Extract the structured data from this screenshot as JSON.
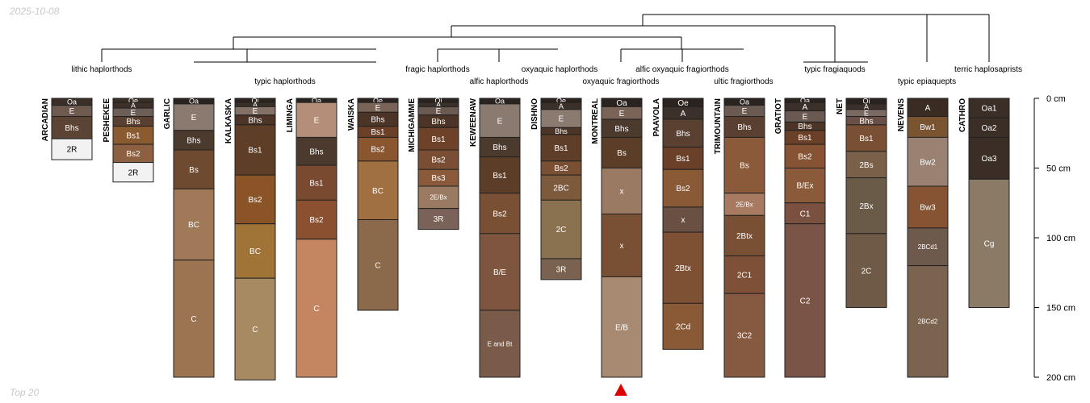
{
  "header": {
    "date": "2025-10-08",
    "note": "Top 20"
  },
  "colors": {
    "line": "#000000",
    "border": "#222222",
    "marker": "#e00000",
    "axis": "#000000"
  },
  "depth_axis": {
    "max_depth_cm": 200,
    "ticks": [
      {
        "depth": 0,
        "label": "0 cm"
      },
      {
        "depth": 50,
        "label": "50 cm"
      },
      {
        "depth": 100,
        "label": "100 cm"
      },
      {
        "depth": 150,
        "label": "150 cm"
      },
      {
        "depth": 200,
        "label": "200 cm"
      }
    ]
  },
  "taxa": [
    {
      "id": "lithic",
      "label": "lithic haplorthods"
    },
    {
      "id": "typic",
      "label": "typic haplorthods"
    },
    {
      "id": "fragic",
      "label": "fragic haplorthods"
    },
    {
      "id": "alfic",
      "label": "alfic haplorthods"
    },
    {
      "id": "oxyaquic",
      "label": "oxyaquic haplorthods"
    },
    {
      "id": "oxyfrag",
      "label": "oxyaquic fragiorthods"
    },
    {
      "id": "alfoxy",
      "label": "alfic oxyaquic fragiorthods"
    },
    {
      "id": "ultic",
      "label": "ultic fragiorthods"
    },
    {
      "id": "typfragq",
      "label": "typic fragiaquods"
    },
    {
      "id": "epi",
      "label": "typic epiaquepts"
    },
    {
      "id": "terric",
      "label": "terric haplosaprists"
    }
  ],
  "profiles": [
    {
      "name": "ARCADIAN",
      "horizons": [
        {
          "name": "Oa",
          "top": 0,
          "bottom": 5,
          "color": "#3a2e27"
        },
        {
          "name": "E",
          "top": 5,
          "bottom": 13,
          "color": "#6e5a4e"
        },
        {
          "name": "Bhs",
          "top": 13,
          "bottom": 29,
          "color": "#5c4434"
        },
        {
          "name": "2R",
          "top": 29,
          "bottom": 44,
          "color": "#f2f2f2"
        }
      ]
    },
    {
      "name": "PESHEKEE",
      "horizons": [
        {
          "name": "Oe",
          "top": 0,
          "bottom": 3,
          "color": "#3a2e27"
        },
        {
          "name": "A",
          "top": 3,
          "bottom": 7,
          "color": "#3c3028"
        },
        {
          "name": "E",
          "top": 7,
          "bottom": 13,
          "color": "#6e5e58"
        },
        {
          "name": "Bhs",
          "top": 13,
          "bottom": 20,
          "color": "#5a4030"
        },
        {
          "name": "Bs1",
          "top": 20,
          "bottom": 33,
          "color": "#8a5a30"
        },
        {
          "name": "Bs2",
          "top": 33,
          "bottom": 46,
          "color": "#8c6040"
        },
        {
          "name": "2R",
          "top": 46,
          "bottom": 60,
          "color": "#f2f2f2"
        }
      ]
    },
    {
      "name": "GARLIC",
      "horizons": [
        {
          "name": "Oa",
          "top": 0,
          "bottom": 4,
          "color": "#2a2320"
        },
        {
          "name": "E",
          "top": 4,
          "bottom": 23,
          "color": "#8a7a70"
        },
        {
          "name": "Bhs",
          "top": 23,
          "bottom": 37,
          "color": "#4c3a2e"
        },
        {
          "name": "Bs",
          "top": 37,
          "bottom": 65,
          "color": "#6e4a30"
        },
        {
          "name": "BC",
          "top": 65,
          "bottom": 116,
          "color": "#a07a58"
        },
        {
          "name": "C",
          "top": 116,
          "bottom": 200,
          "color": "#9c7452"
        }
      ]
    },
    {
      "name": "KALKASKA",
      "horizons": [
        {
          "name": "Oi",
          "top": 0,
          "bottom": 3,
          "color": "#2c2420"
        },
        {
          "name": "A",
          "top": 3,
          "bottom": 6,
          "color": "#3a302a"
        },
        {
          "name": "E",
          "top": 6,
          "bottom": 12,
          "color": "#857266"
        },
        {
          "name": "Bhs",
          "top": 12,
          "bottom": 19,
          "color": "#4c3426"
        },
        {
          "name": "Bs1",
          "top": 19,
          "bottom": 55,
          "color": "#5e3e26"
        },
        {
          "name": "Bs2",
          "top": 55,
          "bottom": 90,
          "color": "#8a5426"
        },
        {
          "name": "BC",
          "top": 90,
          "bottom": 129,
          "color": "#a07436"
        },
        {
          "name": "C",
          "top": 129,
          "bottom": 202,
          "color": "#a88a62"
        }
      ]
    },
    {
      "name": "LIMINGA",
      "horizons": [
        {
          "name": "Oa",
          "top": 0,
          "bottom": 3,
          "color": "#2a2320"
        },
        {
          "name": "E",
          "top": 3,
          "bottom": 28,
          "color": "#b48e78"
        },
        {
          "name": "Bhs",
          "top": 28,
          "bottom": 48,
          "color": "#4c3a2e"
        },
        {
          "name": "Bs1",
          "top": 48,
          "bottom": 73,
          "color": "#7a4a30"
        },
        {
          "name": "Bs2",
          "top": 73,
          "bottom": 101,
          "color": "#8a5030"
        },
        {
          "name": "C",
          "top": 101,
          "bottom": 200,
          "color": "#c48660"
        }
      ]
    },
    {
      "name": "WAISKA",
      "horizons": [
        {
          "name": "Oe",
          "top": 0,
          "bottom": 3,
          "color": "#2a2320"
        },
        {
          "name": "E",
          "top": 3,
          "bottom": 10,
          "color": "#7a6458"
        },
        {
          "name": "Bhs",
          "top": 10,
          "bottom": 20,
          "color": "#4c3426"
        },
        {
          "name": "Bs1",
          "top": 20,
          "bottom": 28,
          "color": "#6a4028"
        },
        {
          "name": "Bs2",
          "top": 28,
          "bottom": 45,
          "color": "#8a5630"
        },
        {
          "name": "BC",
          "top": 45,
          "bottom": 87,
          "color": "#a07040"
        },
        {
          "name": "C",
          "top": 87,
          "bottom": 152,
          "color": "#8a6a4a"
        }
      ]
    },
    {
      "name": "MICHIGAMME",
      "horizons": [
        {
          "name": "Oi",
          "top": 0,
          "bottom": 3,
          "color": "#2a2320"
        },
        {
          "name": "A",
          "top": 3,
          "bottom": 6,
          "color": "#3c302a"
        },
        {
          "name": "E",
          "top": 6,
          "bottom": 12,
          "color": "#6a5a52"
        },
        {
          "name": "Bhs",
          "top": 12,
          "bottom": 21,
          "color": "#4c3426"
        },
        {
          "name": "Bs1",
          "top": 21,
          "bottom": 37,
          "color": "#6e4228"
        },
        {
          "name": "Bs2",
          "top": 37,
          "bottom": 51,
          "color": "#7a4e34"
        },
        {
          "name": "Bs3",
          "top": 51,
          "bottom": 63,
          "color": "#8a5a3a"
        },
        {
          "name": "2E/Bx",
          "top": 63,
          "bottom": 79,
          "color": "#9a7a62"
        },
        {
          "name": "3R",
          "top": 79,
          "bottom": 94,
          "color": "#7a6258"
        }
      ]
    },
    {
      "name": "KEWEENAW",
      "horizons": [
        {
          "name": "Oa",
          "top": 0,
          "bottom": 4,
          "color": "#2a2320"
        },
        {
          "name": "E",
          "top": 4,
          "bottom": 28,
          "color": "#8a7a70"
        },
        {
          "name": "Bhs",
          "top": 28,
          "bottom": 42,
          "color": "#4c3a2e"
        },
        {
          "name": "Bs1",
          "top": 42,
          "bottom": 68,
          "color": "#5c3e28"
        },
        {
          "name": "Bs2",
          "top": 68,
          "bottom": 97,
          "color": "#7a5034"
        },
        {
          "name": "B/E",
          "top": 97,
          "bottom": 152,
          "color": "#7e5640"
        },
        {
          "name": "E and Bt",
          "top": 152,
          "bottom": 200,
          "color": "#7a5a48"
        }
      ]
    },
    {
      "name": "DISHNO",
      "horizons": [
        {
          "name": "Oe",
          "top": 0,
          "bottom": 3,
          "color": "#2a2320"
        },
        {
          "name": "A",
          "top": 3,
          "bottom": 8,
          "color": "#3c302a"
        },
        {
          "name": "E",
          "top": 8,
          "bottom": 21,
          "color": "#8a7a70"
        },
        {
          "name": "Bhs",
          "top": 21,
          "bottom": 26,
          "color": "#4c3426"
        },
        {
          "name": "Bs1",
          "top": 26,
          "bottom": 45,
          "color": "#5e3e28"
        },
        {
          "name": "Bs2",
          "top": 45,
          "bottom": 55,
          "color": "#7a5034"
        },
        {
          "name": "2BC",
          "top": 55,
          "bottom": 73,
          "color": "#7e5a3c"
        },
        {
          "name": "2C",
          "top": 73,
          "bottom": 115,
          "color": "#8a7250"
        },
        {
          "name": "3R",
          "top": 115,
          "bottom": 130,
          "color": "#7a6250"
        }
      ]
    },
    {
      "name": "MONTREAL",
      "horizons": [
        {
          "name": "Oa",
          "top": 0,
          "bottom": 6,
          "color": "#2a2320"
        },
        {
          "name": "E",
          "top": 6,
          "bottom": 15,
          "color": "#7a6458"
        },
        {
          "name": "Bhs",
          "top": 15,
          "bottom": 28,
          "color": "#4c3a2e"
        },
        {
          "name": "Bs",
          "top": 28,
          "bottom": 50,
          "color": "#5c3e28"
        },
        {
          "name": "x",
          "top": 50,
          "bottom": 83,
          "color": "#9a7a62"
        },
        {
          "name": "x",
          "top": 83,
          "bottom": 128,
          "color": "#7a5034"
        },
        {
          "name": "E/B",
          "top": 128,
          "bottom": 200,
          "color": "#a88a72"
        }
      ]
    },
    {
      "name": "PAAVOLA",
      "horizons": [
        {
          "name": "Oe",
          "top": 0,
          "bottom": 6,
          "color": "#2a2320"
        },
        {
          "name": "A",
          "top": 6,
          "bottom": 15,
          "color": "#3c302a"
        },
        {
          "name": "Bhs",
          "top": 15,
          "bottom": 35,
          "color": "#5a4030"
        },
        {
          "name": "Bs1",
          "top": 35,
          "bottom": 51,
          "color": "#6a4028"
        },
        {
          "name": "Bs2",
          "top": 51,
          "bottom": 78,
          "color": "#8a5a36"
        },
        {
          "name": "x",
          "top": 78,
          "bottom": 96,
          "color": "#6a5042"
        },
        {
          "name": "2Btx",
          "top": 96,
          "bottom": 147,
          "color": "#7e5034"
        },
        {
          "name": "2Cd",
          "top": 147,
          "bottom": 180,
          "color": "#8a5a36"
        }
      ]
    },
    {
      "name": "TRIMOUNTAIN",
      "horizons": [
        {
          "name": "Oa",
          "top": 0,
          "bottom": 5,
          "color": "#2a2320"
        },
        {
          "name": "E",
          "top": 5,
          "bottom": 13,
          "color": "#6a5a52"
        },
        {
          "name": "Bhs",
          "top": 13,
          "bottom": 28,
          "color": "#5a4030"
        },
        {
          "name": "Bs",
          "top": 28,
          "bottom": 68,
          "color": "#8a5a3a"
        },
        {
          "name": "2E/Bx",
          "top": 68,
          "bottom": 84,
          "color": "#a87a62"
        },
        {
          "name": "2Btx",
          "top": 84,
          "bottom": 113,
          "color": "#7a5034"
        },
        {
          "name": "2C1",
          "top": 113,
          "bottom": 140,
          "color": "#7e5038"
        },
        {
          "name": "3C2",
          "top": 140,
          "bottom": 200,
          "color": "#865a40"
        }
      ]
    },
    {
      "name": "GRATIOT",
      "horizons": [
        {
          "name": "Oa",
          "top": 0,
          "bottom": 3,
          "color": "#2a2320"
        },
        {
          "name": "A",
          "top": 3,
          "bottom": 9,
          "color": "#3c302a"
        },
        {
          "name": "E",
          "top": 9,
          "bottom": 17,
          "color": "#6a5a52"
        },
        {
          "name": "Bhs",
          "top": 17,
          "bottom": 23,
          "color": "#4c3426"
        },
        {
          "name": "Bs1",
          "top": 23,
          "bottom": 33,
          "color": "#6a4028"
        },
        {
          "name": "Bs2",
          "top": 33,
          "bottom": 50,
          "color": "#865434"
        },
        {
          "name": "B/Ex",
          "top": 50,
          "bottom": 75,
          "color": "#8a5a3a"
        },
        {
          "name": "C1",
          "top": 75,
          "bottom": 90,
          "color": "#7a5040"
        },
        {
          "name": "C2",
          "top": 90,
          "bottom": 200,
          "color": "#7a5446"
        }
      ]
    },
    {
      "name": "NET",
      "horizons": [
        {
          "name": "Oi",
          "top": 0,
          "bottom": 4,
          "color": "#2a2320"
        },
        {
          "name": "A",
          "top": 4,
          "bottom": 8,
          "color": "#3c302a"
        },
        {
          "name": "E",
          "top": 8,
          "bottom": 13,
          "color": "#7a6a62"
        },
        {
          "name": "Bhs",
          "top": 13,
          "bottom": 19,
          "color": "#6a5046"
        },
        {
          "name": "Bs1",
          "top": 19,
          "bottom": 38,
          "color": "#7a5034"
        },
        {
          "name": "2Bs",
          "top": 38,
          "bottom": 57,
          "color": "#7a6048"
        },
        {
          "name": "2Bx",
          "top": 57,
          "bottom": 97,
          "color": "#6a5a48"
        },
        {
          "name": "2C",
          "top": 97,
          "bottom": 150,
          "color": "#6e5a46"
        }
      ]
    },
    {
      "name": "NEVENS",
      "horizons": [
        {
          "name": "A",
          "top": 0,
          "bottom": 13,
          "color": "#3a2c22"
        },
        {
          "name": "Bw1",
          "top": 13,
          "bottom": 28,
          "color": "#7a5430"
        },
        {
          "name": "Bw2",
          "top": 28,
          "bottom": 63,
          "color": "#9a8272"
        },
        {
          "name": "Bw3",
          "top": 63,
          "bottom": 93,
          "color": "#865432"
        },
        {
          "name": "2BCd1",
          "top": 93,
          "bottom": 120,
          "color": "#6e5a4c"
        },
        {
          "name": "2BCd2",
          "top": 120,
          "bottom": 200,
          "color": "#7a6450"
        }
      ]
    },
    {
      "name": "CATHRO",
      "horizons": [
        {
          "name": "Oa1",
          "top": 0,
          "bottom": 14,
          "color": "#3a2e27"
        },
        {
          "name": "Oa2",
          "top": 14,
          "bottom": 28,
          "color": "#3a2e27"
        },
        {
          "name": "Oa3",
          "top": 28,
          "bottom": 58,
          "color": "#3a2e27"
        },
        {
          "name": "Cg",
          "top": 58,
          "bottom": 150,
          "color": "#8a7a66"
        }
      ]
    }
  ]
}
